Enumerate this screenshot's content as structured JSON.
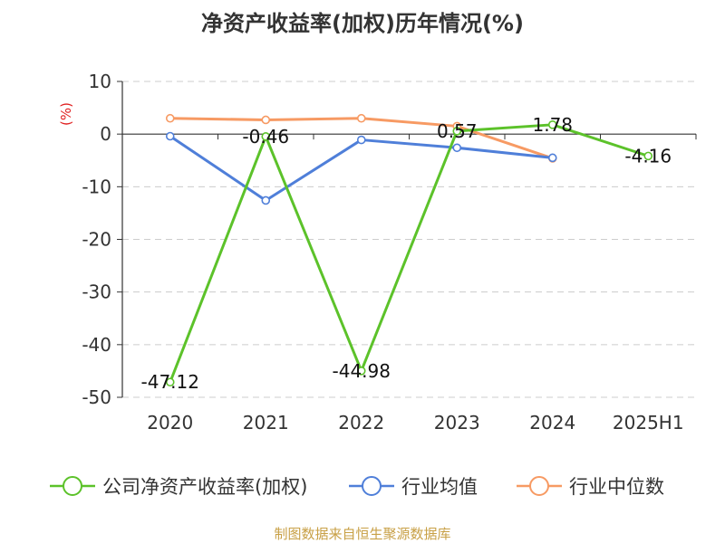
{
  "chart_data": {
    "type": "line",
    "title": "净资产收益率(加权)历年情况(%)",
    "ylabel": "(%)",
    "categories": [
      "2020",
      "2021",
      "2022",
      "2023",
      "2024",
      "2025H1"
    ],
    "ylim": [
      -50,
      10
    ],
    "yticks": [
      "10",
      "0",
      "-10",
      "-20",
      "-30",
      "-40",
      "-50"
    ],
    "grid": true,
    "legend_position": "bottom",
    "series": [
      {
        "name": "公司净资产收益率(加权)",
        "color": "#5cc22a",
        "values": [
          -47.12,
          -0.46,
          -44.98,
          0.57,
          1.78,
          -4.16
        ],
        "labels": [
          "-47.12",
          "-0.46",
          "-44.98",
          "0.57",
          "1.78",
          "-4.16"
        ]
      },
      {
        "name": "行业均值",
        "color": "#4f7fd9",
        "values": [
          -0.4,
          -12.6,
          -1.1,
          -2.6,
          -4.5,
          null
        ]
      },
      {
        "name": "行业中位数",
        "color": "#f79a63",
        "values": [
          3.0,
          2.7,
          3.0,
          1.5,
          -4.6,
          null
        ]
      }
    ]
  },
  "source": "制图数据来自恒生聚源数据库"
}
